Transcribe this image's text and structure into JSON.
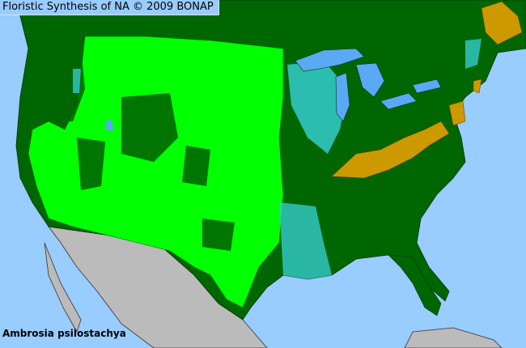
{
  "header": {
    "title": "Floristic Synthesis of NA © 2009 BONAP"
  },
  "species": "Ambrosia psilostachya",
  "colors": {
    "ocean": "#99ccff",
    "present_not_rare": "#00ff00",
    "species_absent_county": "#006600",
    "adventive": "#33cccc",
    "rare_noxious": "#cc9900",
    "outside_region": "#bbbbbb",
    "borders": "#003300"
  }
}
